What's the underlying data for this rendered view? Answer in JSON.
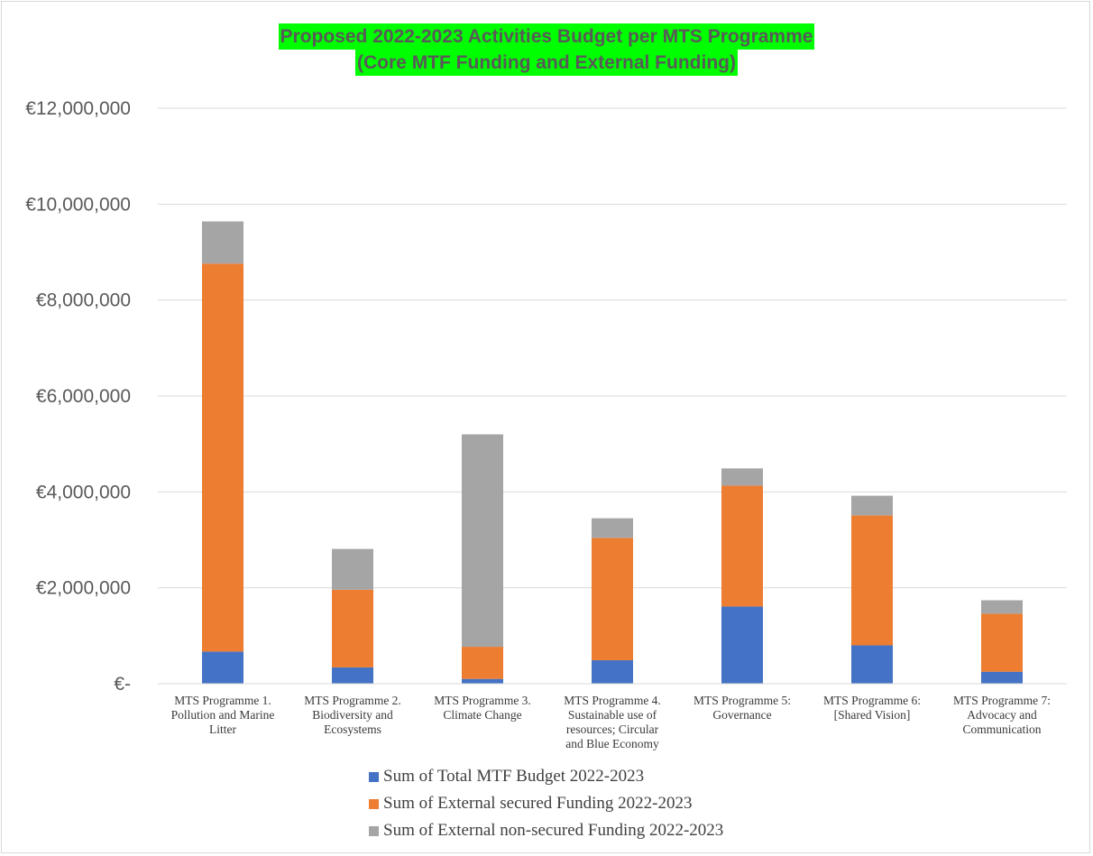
{
  "chart_data": {
    "type": "bar",
    "stacked": true,
    "title_lines": [
      "Proposed 2022-2023 Activities Budget per MTS Programme",
      "(Core MTF Funding and External Funding)"
    ],
    "categories": [
      [
        "MTS Programme 1.",
        "Pollution and Marine",
        "Litter"
      ],
      [
        "MTS Programme 2.",
        "Biodiversity and",
        "Ecosystems"
      ],
      [
        "MTS Programme 3.",
        "Climate Change"
      ],
      [
        "MTS Programme 4.",
        "Sustainable use of",
        "resources; Circular",
        "and Blue Economy"
      ],
      [
        "MTS Programme 5:",
        "Governance"
      ],
      [
        "MTS Programme 6:",
        "[Shared Vision]"
      ],
      [
        "MTS Programme 7:",
        "Advocacy and",
        "Communication"
      ]
    ],
    "series": [
      {
        "name": "Sum of Total MTF Budget 2022-2023",
        "color": "#4472c4",
        "values": [
          670000,
          340000,
          100000,
          490000,
          1610000,
          800000,
          250000
        ]
      },
      {
        "name": "Sum of External secured Funding 2022-2023",
        "color": "#ed7d31",
        "values": [
          8090000,
          1620000,
          670000,
          2550000,
          2520000,
          2710000,
          1210000
        ]
      },
      {
        "name": "Sum of External non-secured Funding 2022-2023",
        "color": "#a5a5a5",
        "values": [
          880000,
          850000,
          4430000,
          410000,
          360000,
          410000,
          280000
        ]
      }
    ],
    "yticks": [
      {
        "value": 0,
        "label": "€-"
      },
      {
        "value": 2000000,
        "label": "€2,000,000"
      },
      {
        "value": 4000000,
        "label": "€4,000,000"
      },
      {
        "value": 6000000,
        "label": "€6,000,000"
      },
      {
        "value": 8000000,
        "label": "€8,000,000"
      },
      {
        "value": 10000000,
        "label": "€10,000,000"
      },
      {
        "value": 12000000,
        "label": "€12,000,000"
      }
    ],
    "ylim": [
      0,
      12000000
    ],
    "grid": true,
    "legend_position": "bottom",
    "gridline_color": "#d9d9d9"
  }
}
